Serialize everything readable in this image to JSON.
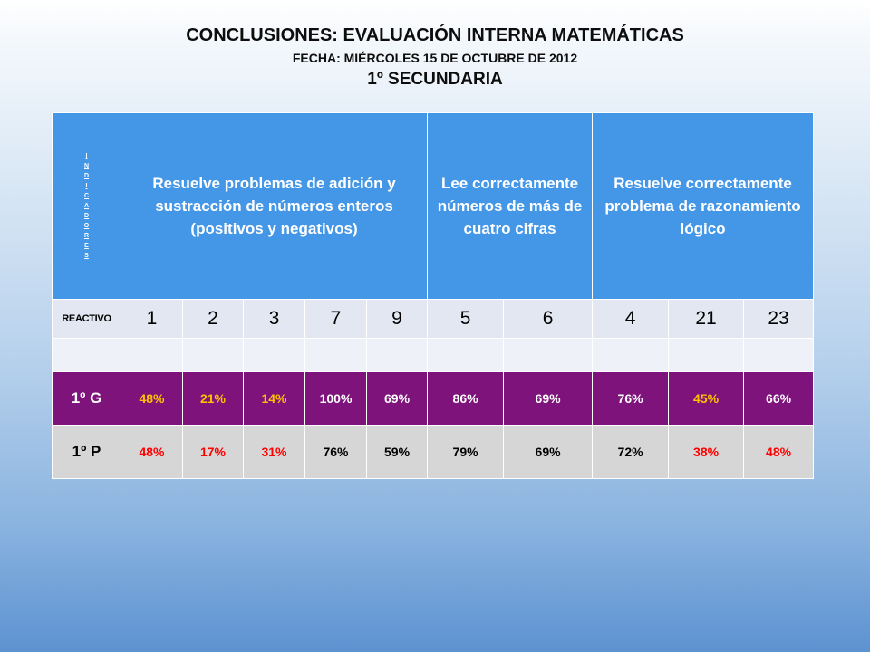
{
  "titles": {
    "main": "CONCLUSIONES: EVALUACIÓN INTERNA MATEMÁTICAS",
    "date": "FECHA: MIÉRCOLES 15 DE OCTUBRE DE 2012",
    "grade": "1º SECUNDARIA"
  },
  "table": {
    "indicator_letters": [
      "I",
      "N",
      "D",
      "I",
      "C",
      "A",
      "D",
      "O",
      "R",
      "E",
      "S"
    ],
    "headers": [
      "Resuelve problemas de adición y sustracción de números enteros (positivos y negativos)",
      "Lee correctamente números de más de cuatro cifras",
      "Resuelve correctamente problema de razonamiento lógico"
    ],
    "reactivo_label": "REACTIVO",
    "reactivos": [
      "1",
      "2",
      "3",
      "7",
      "9",
      "5",
      "6",
      "4",
      "21",
      "23"
    ],
    "rows": [
      {
        "label": "1º G",
        "values": [
          "48%",
          "21%",
          "14%",
          "100%",
          "69%",
          "86%",
          "69%",
          "76%",
          "45%",
          "66%"
        ],
        "colors": [
          "#ffc000",
          "#ffc000",
          "#ffc000",
          "#ffffff",
          "#ffffff",
          "#ffffff",
          "#ffffff",
          "#ffffff",
          "#ffc000",
          "#ffffff"
        ]
      },
      {
        "label": "1º P",
        "values": [
          "48%",
          "17%",
          "31%",
          "76%",
          "59%",
          "79%",
          "69%",
          "72%",
          "38%",
          "48%"
        ],
        "colors": [
          "#ff0000",
          "#ff0000",
          "#ff0000",
          "#000000",
          "#000000",
          "#000000",
          "#000000",
          "#000000",
          "#ff0000",
          "#ff0000"
        ]
      }
    ]
  }
}
